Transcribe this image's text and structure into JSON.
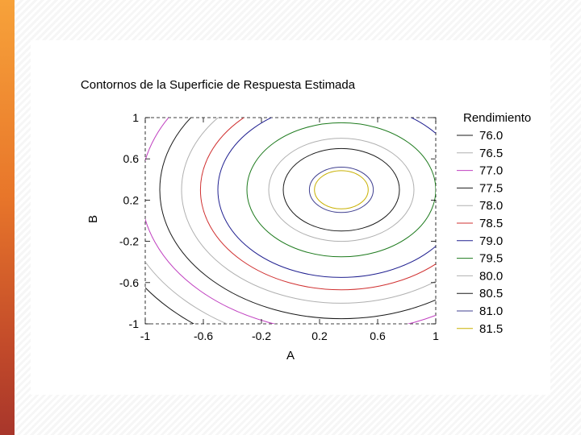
{
  "chart_data": {
    "type": "contour",
    "title": "Contornos de la Superficie de Respuesta Estimada",
    "xlabel": "A",
    "ylabel": "B",
    "xlim": [
      -1,
      1
    ],
    "ylim": [
      -1,
      1
    ],
    "x_ticks": [
      "-1",
      "-0.6",
      "-0.2",
      "0.2",
      "0.6",
      "1"
    ],
    "y_ticks": [
      "1",
      "0.6",
      "0.2",
      "-0.2",
      "-0.6",
      "-1"
    ],
    "x_tick_values": [
      -1,
      -0.6,
      -0.2,
      0.2,
      0.6,
      1
    ],
    "y_tick_values": [
      1,
      0.6,
      0.2,
      -0.2,
      -0.6,
      -1
    ],
    "legend_title": "Rendimiento",
    "legend_placement": "right",
    "center": [
      0.35,
      0.3
    ],
    "levels": [
      {
        "label": "76.0",
        "value": 76.0,
        "color": "#1a1a1a",
        "r": 1.65
      },
      {
        "label": "76.5",
        "value": 76.5,
        "color": "#b0b0b0",
        "r": 1.52
      },
      {
        "label": "77.0",
        "value": 77.0,
        "color": "#c040c0",
        "r": 1.38
      },
      {
        "label": "77.5",
        "value": 77.5,
        "color": "#1a1a1a",
        "r": 1.25
      },
      {
        "label": "78.0",
        "value": 78.0,
        "color": "#b0b0b0",
        "r": 1.1
      },
      {
        "label": "78.5",
        "value": 78.5,
        "color": "#d03030",
        "r": 0.97
      },
      {
        "label": "79.0",
        "value": 79.0,
        "color": "#202090",
        "r": 0.85
      },
      {
        "label": "79.5",
        "value": 79.5,
        "color": "#1d7a1d",
        "r": 0.65
      },
      {
        "label": "80.0",
        "value": 80.0,
        "color": "#b0b0b0",
        "r": 0.5
      },
      {
        "label": "80.5",
        "value": 80.5,
        "color": "#1a1a1a",
        "r": 0.4
      },
      {
        "label": "81.0",
        "value": 81.0,
        "color": "#404090",
        "r": 0.22
      },
      {
        "label": "81.5",
        "value": 81.5,
        "color": "#c8b000",
        "r": 0.185
      }
    ]
  }
}
